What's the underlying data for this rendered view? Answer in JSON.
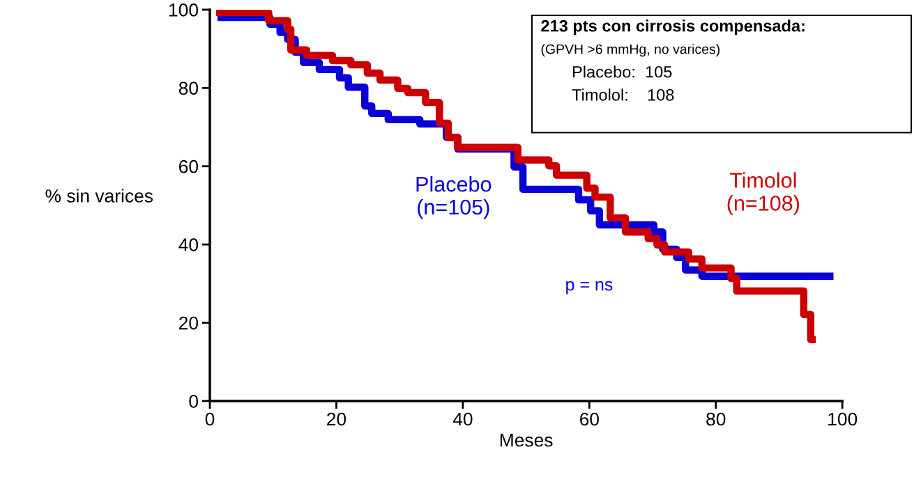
{
  "chart_data": {
    "type": "step",
    "xlabel": "Meses",
    "ylabel": "% sin varices",
    "xlim": [
      0,
      100
    ],
    "ylim": [
      0,
      100
    ],
    "xticks": [
      0,
      20,
      40,
      60,
      80,
      100
    ],
    "yticks": [
      0,
      20,
      40,
      60,
      80,
      100
    ],
    "grid": false,
    "legend": false,
    "series": [
      {
        "name": "Placebo\n(n=105)",
        "color": "#0a00d8",
        "x": [
          1.2,
          9.5,
          11.1,
          12.3,
          13.5,
          14.8,
          17.3,
          20.5,
          21.9,
          24.5,
          25.6,
          28.2,
          33.2,
          37.4,
          39.2,
          48.1,
          49.5,
          58.3,
          60.2,
          61.6,
          70.2,
          71.6,
          73.8,
          75.2,
          77.8,
          98.6
        ],
        "values": [
          98,
          96.3,
          94.2,
          92.4,
          89.1,
          86.5,
          84.7,
          82.6,
          80.2,
          75.4,
          73.5,
          71.9,
          70.8,
          67.4,
          64.4,
          59.8,
          54.1,
          51.4,
          48.6,
          45,
          43.2,
          38.8,
          36.7,
          33.5,
          31.9,
          31.9
        ]
      },
      {
        "name": "Timolol\n(n=108)",
        "color": "#cc0000",
        "x": [
          1,
          9.3,
          12.3,
          12.8,
          15.3,
          19.4,
          22.3,
          24.9,
          26.9,
          29.7,
          31.3,
          34.1,
          36.3,
          37.7,
          39.2,
          48.7,
          53.6,
          54.8,
          59.6,
          60.9,
          63.3,
          65.7,
          69.3,
          70.7,
          71.9,
          75.7,
          77.8,
          82.4,
          83.3,
          93.9,
          95,
          95.8
        ],
        "values": [
          99.3,
          97.2,
          95,
          89.7,
          88.3,
          87,
          85.9,
          83.8,
          82,
          79.9,
          78.8,
          76.3,
          71,
          67.3,
          64.8,
          61.6,
          60.1,
          57.7,
          54.4,
          52.1,
          46.8,
          43.2,
          41.5,
          39.9,
          38.1,
          36.3,
          34,
          31.3,
          28.1,
          22.1,
          15.7,
          15.7
        ]
      }
    ],
    "annotations": [
      "213 pts con cirrosis compensada:",
      "(GPVH >6 mmHg, no varices)",
      "Placebo:  105",
      "Timolol:    108",
      "p = ns"
    ]
  }
}
